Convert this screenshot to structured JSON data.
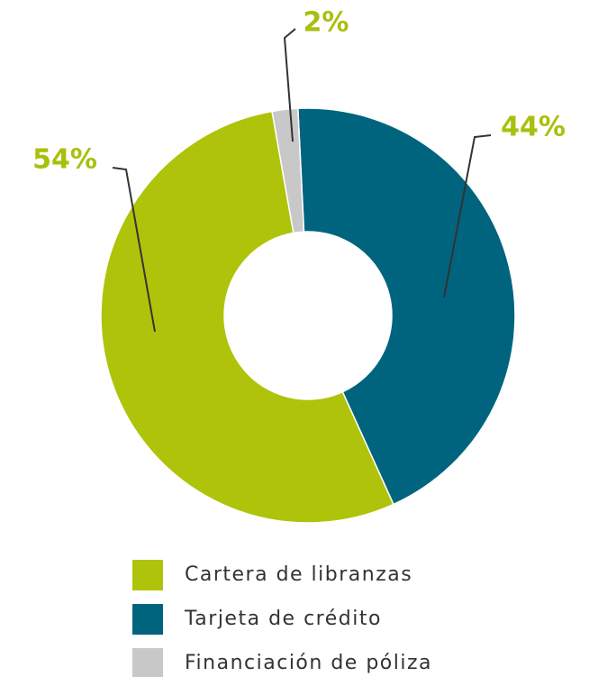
{
  "chart_data": {
    "type": "donut",
    "categories": [
      "Cartera de libranzas",
      "Tarjeta de crédito",
      "Financiación de póliza"
    ],
    "values": [
      54,
      44,
      2
    ],
    "value_labels": [
      "54%",
      "44%",
      "2%"
    ],
    "colors": [
      "#aec30a",
      "#00647f",
      "#c8c8c8"
    ],
    "label_color": "#a8c00c"
  }
}
